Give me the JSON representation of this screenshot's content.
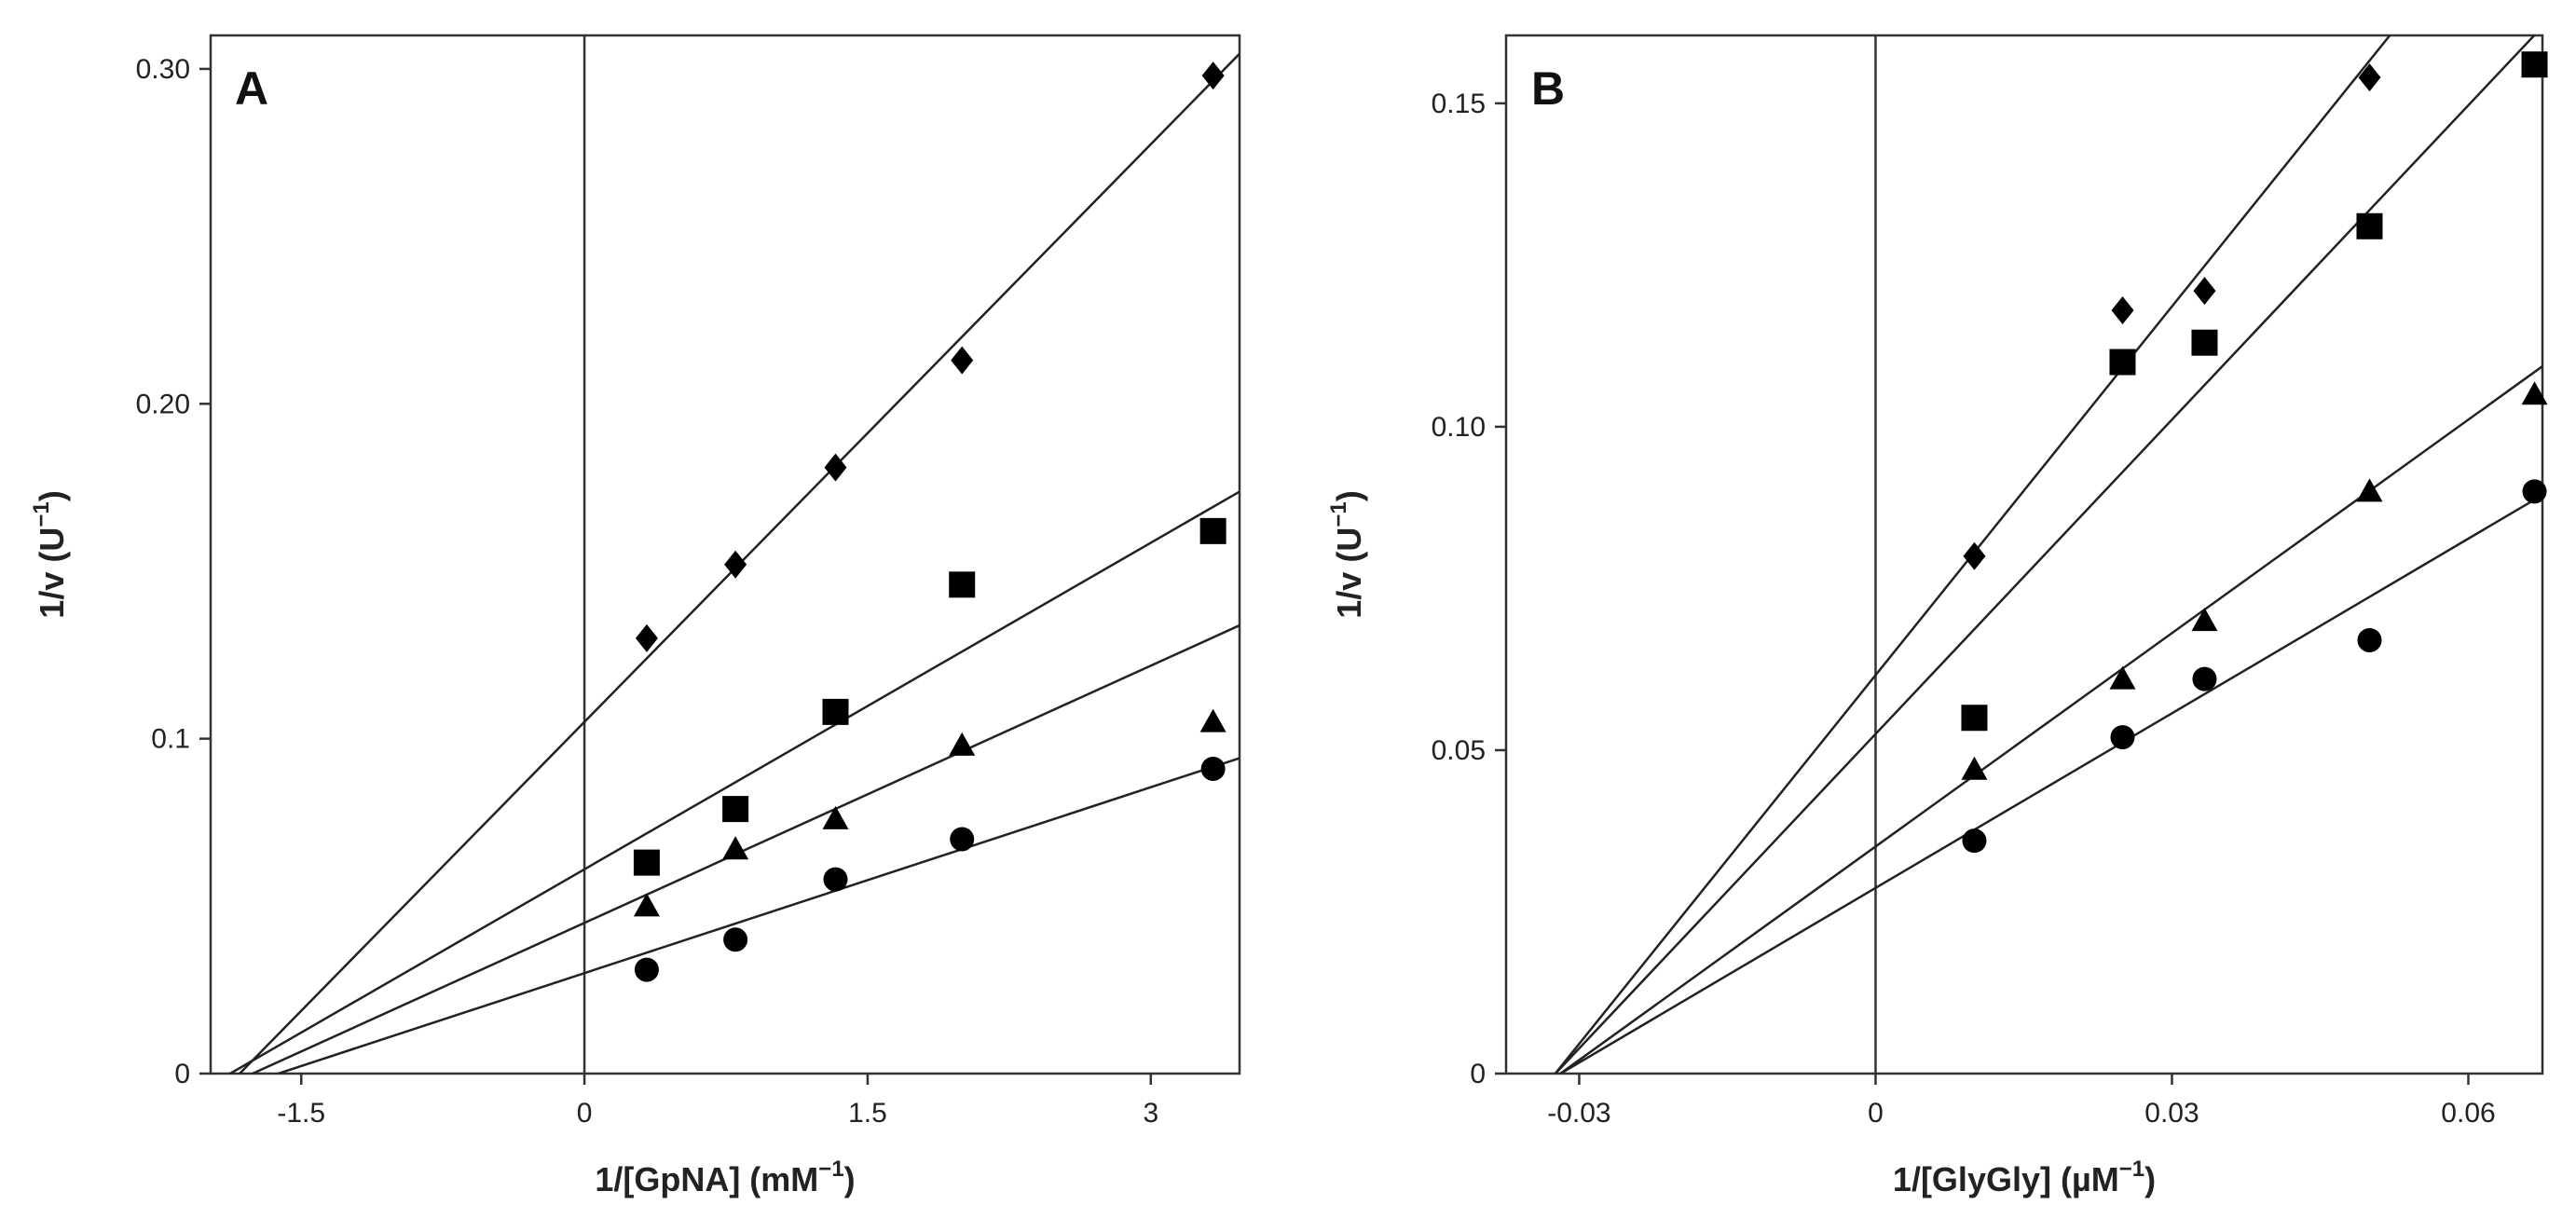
{
  "chart_data": [
    {
      "type": "scatter",
      "panel_label": "A",
      "xlabel": {
        "prefix": "1/[GpNA] (mM",
        "sup": "−1",
        "suffix": ")"
      },
      "ylabel": {
        "prefix": "1/v (U",
        "sup": "−1",
        "suffix": ")"
      },
      "xlim": [
        -1.98,
        3.47
      ],
      "ylim": [
        0,
        0.31
      ],
      "xticks": [
        {
          "value": -1.5,
          "label": "-1.5"
        },
        {
          "value": 0,
          "label": "0"
        },
        {
          "value": 1.5,
          "label": "1.5"
        },
        {
          "value": 3,
          "label": "3"
        }
      ],
      "yticks": [
        {
          "value": 0,
          "label": "0"
        },
        {
          "value": 0.1,
          "label": "0.1"
        },
        {
          "value": 0.2,
          "label": "0.20"
        },
        {
          "value": 0.3,
          "label": "0.30"
        }
      ],
      "vertical_line_at_x": 0,
      "series": [
        {
          "name": "diamond",
          "marker": "diamond",
          "x": [
            0.33,
            0.8,
            1.33,
            2.0,
            3.33
          ],
          "y": [
            0.13,
            0.152,
            0.181,
            0.213,
            0.298
          ],
          "fit": {
            "slope": 0.0575,
            "intercept": 0.105
          }
        },
        {
          "name": "square",
          "marker": "square",
          "x": [
            0.33,
            0.8,
            1.33,
            2.0,
            3.33
          ],
          "y": [
            0.063,
            0.079,
            0.108,
            0.146,
            0.162
          ],
          "fit": {
            "slope": 0.0325,
            "intercept": 0.061
          }
        },
        {
          "name": "triangle",
          "marker": "triangle",
          "x": [
            0.33,
            0.8,
            1.33,
            2.0,
            3.33
          ],
          "y": [
            0.05,
            0.067,
            0.076,
            0.098,
            0.105
          ],
          "fit": {
            "slope": 0.0256,
            "intercept": 0.045
          }
        },
        {
          "name": "circle",
          "marker": "circle",
          "x": [
            0.33,
            0.8,
            1.33,
            2.0,
            3.33
          ],
          "y": [
            0.031,
            0.04,
            0.058,
            0.07,
            0.091
          ],
          "fit": {
            "slope": 0.0185,
            "intercept": 0.03
          }
        }
      ]
    },
    {
      "type": "scatter",
      "panel_label": "B",
      "xlabel": {
        "prefix": "1/[GlyGly] (µM",
        "sup": "−1",
        "suffix": ")"
      },
      "ylabel": {
        "prefix": "1/v (U",
        "sup": "−1",
        "suffix": ")"
      },
      "xlim": [
        -0.0374,
        0.0675
      ],
      "ylim": [
        0,
        0.1605
      ],
      "xticks": [
        {
          "value": -0.03,
          "label": "-0.03"
        },
        {
          "value": 0,
          "label": "0"
        },
        {
          "value": 0.03,
          "label": "0.03"
        },
        {
          "value": 0.06,
          "label": "0.06"
        }
      ],
      "yticks": [
        {
          "value": 0,
          "label": "0"
        },
        {
          "value": 0.05,
          "label": "0.05"
        },
        {
          "value": 0.1,
          "label": "0.10"
        },
        {
          "value": 0.15,
          "label": "0.15"
        }
      ],
      "vertical_line_at_x": 0,
      "series": [
        {
          "name": "diamond",
          "marker": "diamond",
          "x": [
            0.01,
            0.025,
            0.0333,
            0.05
          ],
          "y": [
            0.08,
            0.118,
            0.121,
            0.154
          ],
          "fit": {
            "slope": 1.9,
            "intercept": 0.0616
          }
        },
        {
          "name": "square",
          "marker": "square",
          "x": [
            0.01,
            0.025,
            0.0333,
            0.05,
            0.0667
          ],
          "y": [
            0.055,
            0.11,
            0.113,
            0.131,
            0.156
          ],
          "fit": {
            "slope": 1.62,
            "intercept": 0.0525
          }
        },
        {
          "name": "triangle",
          "marker": "triangle",
          "x": [
            0.01,
            0.025,
            0.0333,
            0.05,
            0.0667
          ],
          "y": [
            0.047,
            0.061,
            0.07,
            0.09,
            0.105
          ],
          "fit": {
            "slope": 1.1,
            "intercept": 0.0351
          }
        },
        {
          "name": "circle",
          "marker": "circle",
          "x": [
            0.01,
            0.025,
            0.0333,
            0.05,
            0.0667
          ],
          "y": [
            0.036,
            0.052,
            0.061,
            0.067,
            0.09
          ],
          "fit": {
            "slope": 0.9,
            "intercept": 0.0287
          }
        }
      ]
    }
  ]
}
